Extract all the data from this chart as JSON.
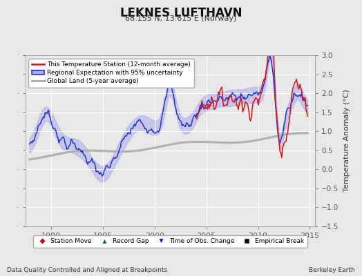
{
  "title": "LEKNES LUFTHAVN",
  "subtitle": "68.155 N, 13.615 E (Norway)",
  "ylabel": "Temperature Anomaly (°C)",
  "xlabel_left": "Data Quality Controlled and Aligned at Breakpoints",
  "xlabel_right": "Berkeley Earth",
  "ylim": [
    -1.5,
    3.0
  ],
  "xlim": [
    1987.5,
    2015.5
  ],
  "xticks": [
    1990,
    1995,
    2000,
    2005,
    2010,
    2015
  ],
  "yticks": [
    -1.5,
    -1.0,
    -0.5,
    0.0,
    0.5,
    1.0,
    1.5,
    2.0,
    2.5,
    3.0
  ],
  "background_color": "#e8e8e8",
  "plot_bg_color": "#e8e8e8",
  "grid_color": "#ffffff",
  "legend_items": [
    {
      "label": "This Temperature Station (12-month average)",
      "color": "#cc0000"
    },
    {
      "label": "Regional Expectation with 95% uncertainty",
      "color": "#3333bb"
    },
    {
      "label": "Global Land (5-year average)",
      "color": "#aaaaaa"
    }
  ],
  "bottom_legend": [
    {
      "label": "Station Move",
      "color": "#cc0000",
      "marker": "D"
    },
    {
      "label": "Record Gap",
      "color": "#006600",
      "marker": "^"
    },
    {
      "label": "Time of Obs. Change",
      "color": "#0000cc",
      "marker": "v"
    },
    {
      "label": "Empirical Break",
      "color": "#000000",
      "marker": "s"
    }
  ]
}
